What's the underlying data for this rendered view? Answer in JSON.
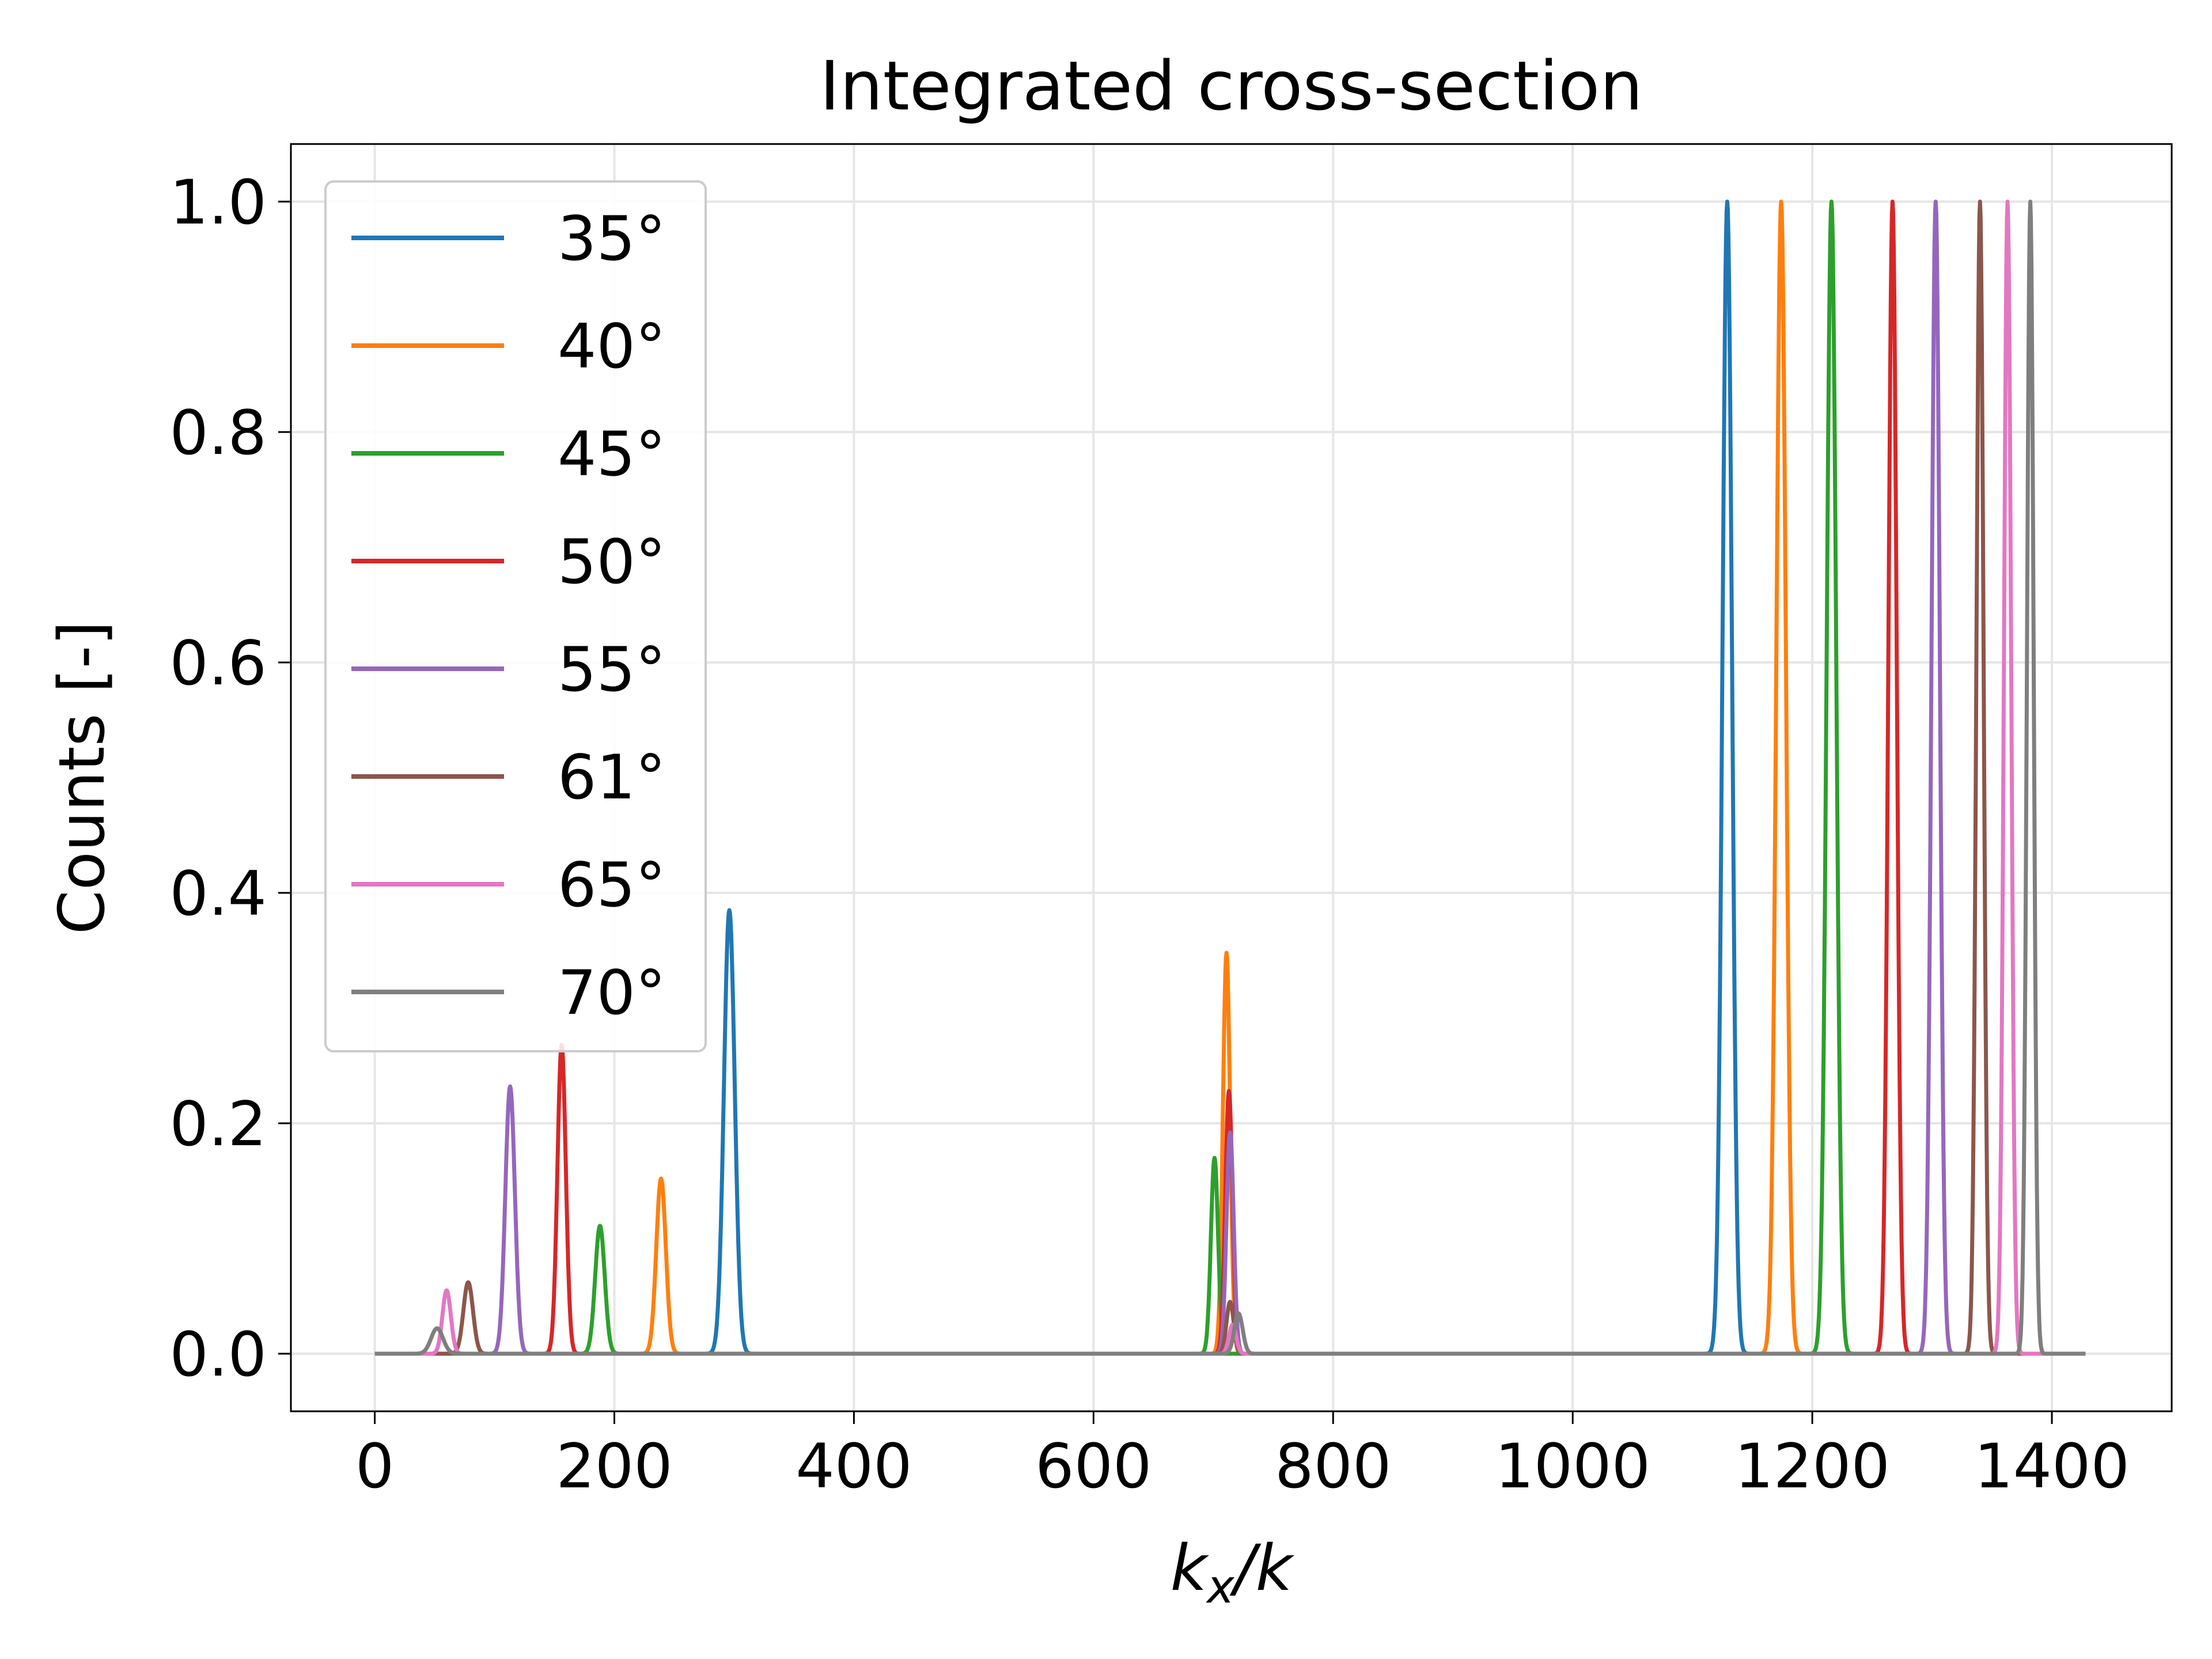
{
  "chart_data": {
    "type": "line",
    "title": "Integrated cross-section",
    "xlabel": {
      "base": "k",
      "sub": "x",
      "rest": "/k"
    },
    "ylabel": "Counts [-]",
    "xlim": [
      -70,
      1500
    ],
    "ylim": [
      -0.05,
      1.05
    ],
    "xticks": [
      0,
      200,
      400,
      600,
      800,
      1000,
      1200,
      1400
    ],
    "xtick_labels": [
      "0",
      "200",
      "400",
      "600",
      "800",
      "1000",
      "1200",
      "1400"
    ],
    "yticks": [
      0.0,
      0.2,
      0.4,
      0.6,
      0.8,
      1.0
    ],
    "ytick_labels": [
      "0.0",
      "0.2",
      "0.4",
      "0.6",
      "0.8",
      "1.0"
    ],
    "grid": true,
    "legend_position": "upper-left",
    "x_range": [
      0,
      1428
    ],
    "series": [
      {
        "name": "35°",
        "color": "#1f77b4",
        "peaks": [
          [
            296,
            0.385,
            4.5
          ],
          [
            1129,
            1.0,
            4.0
          ]
        ]
      },
      {
        "name": "40°",
        "color": "#ff7f0e",
        "peaks": [
          [
            239,
            0.152,
            4.0
          ],
          [
            711,
            0.348,
            3.0
          ],
          [
            1174,
            1.0,
            4.0
          ]
        ]
      },
      {
        "name": "45°",
        "color": "#2ca02c",
        "peaks": [
          [
            188,
            0.111,
            4.0
          ],
          [
            701,
            0.17,
            3.0
          ],
          [
            1216,
            1.0,
            4.0
          ]
        ]
      },
      {
        "name": "50°",
        "color": "#d62728",
        "peaks": [
          [
            156,
            0.268,
            3.5
          ],
          [
            713,
            0.228,
            3.0
          ],
          [
            1267,
            1.0,
            3.5
          ]
        ]
      },
      {
        "name": "55°",
        "color": "#9467bd",
        "peaks": [
          [
            113,
            0.232,
            4.0
          ],
          [
            714,
            0.192,
            3.0
          ],
          [
            1303,
            1.0,
            3.5
          ]
        ]
      },
      {
        "name": "61°",
        "color": "#8c564b",
        "peaks": [
          [
            78,
            0.062,
            4.0
          ],
          [
            714,
            0.045,
            3.0
          ],
          [
            1340,
            1.0,
            3.0
          ]
        ]
      },
      {
        "name": "65°",
        "color": "#e377c2",
        "peaks": [
          [
            60,
            0.055,
            3.5
          ],
          [
            716,
            0.025,
            3.0
          ],
          [
            1363,
            1.0,
            3.0
          ]
        ]
      },
      {
        "name": "70°",
        "color": "#7f7f7f",
        "peaks": [
          [
            52,
            0.022,
            5.0
          ],
          [
            721,
            0.035,
            3.5
          ],
          [
            1382,
            1.0,
            2.8
          ]
        ]
      }
    ]
  }
}
